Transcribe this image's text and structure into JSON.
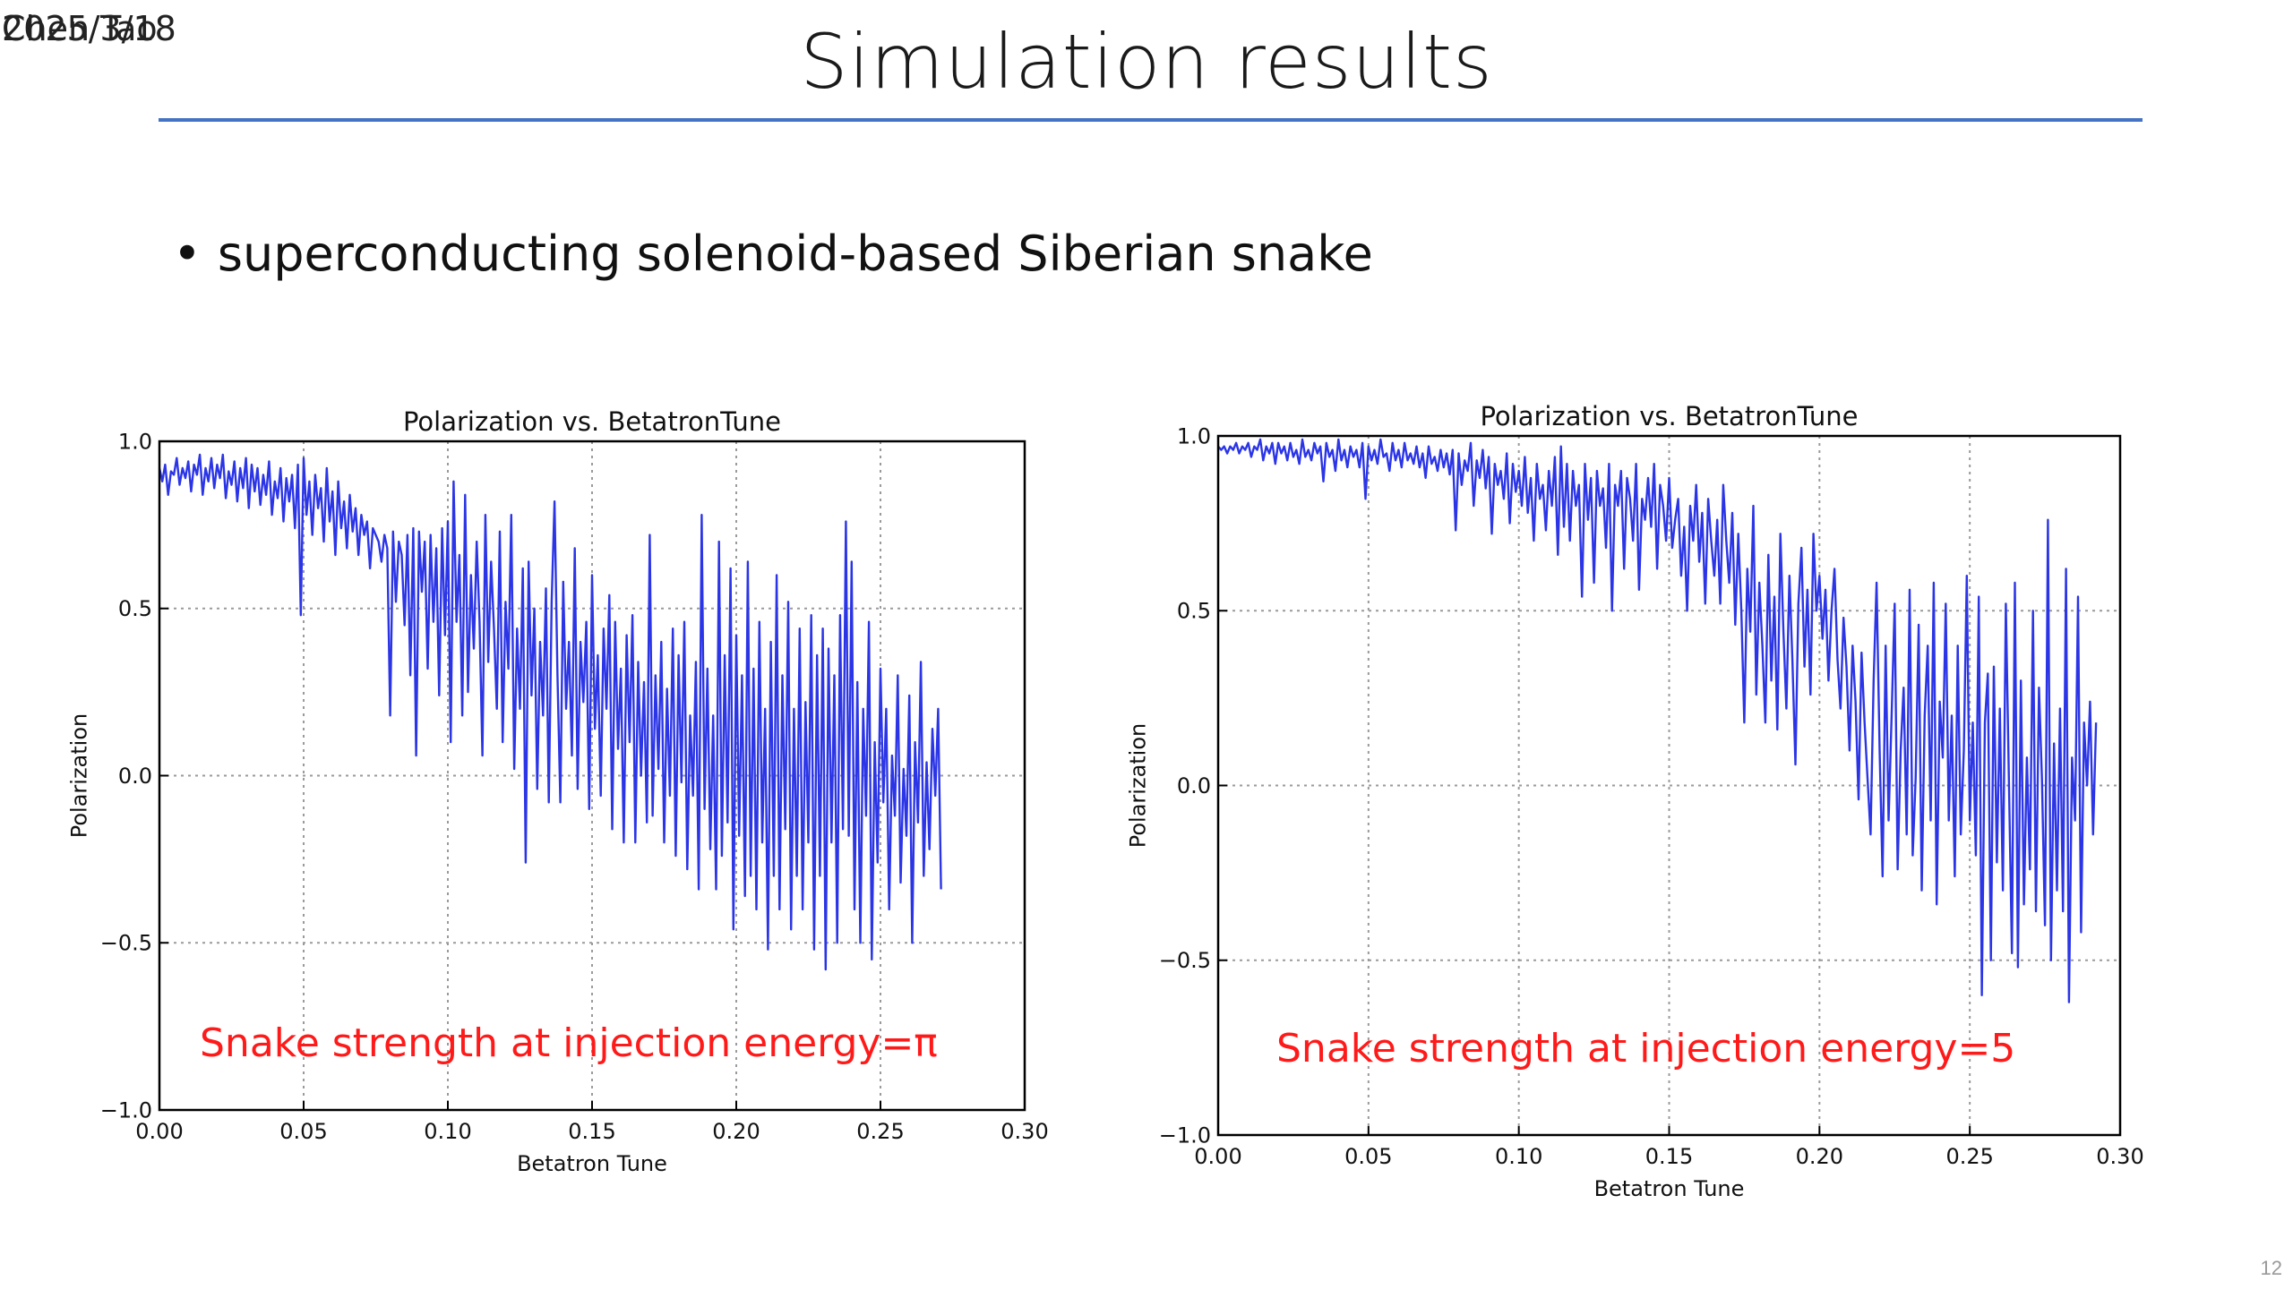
{
  "header": {
    "date_text": "2025/3/18",
    "author_text": "Chen Tao",
    "title": "Simulation results"
  },
  "bullet": {
    "text": "superconducting solenoid-based Siberian snake"
  },
  "footer": {
    "slide_number": "12"
  },
  "colors": {
    "accent_rule": "#4472c4",
    "series_line": "#2b35e6",
    "annotation": "#ff1a1a"
  },
  "chart_data": [
    {
      "type": "line",
      "title": "Polarization vs. BetatronTune",
      "xlabel": "Betatron Tune",
      "ylabel": "Polarization",
      "xlim": [
        0.0,
        0.3
      ],
      "ylim": [
        -1.0,
        1.0
      ],
      "x_ticks": [
        "0.00",
        "0.05",
        "0.10",
        "0.15",
        "0.20",
        "0.25",
        "0.30"
      ],
      "y_ticks": [
        "−1.0",
        "−0.5",
        "0.0",
        "0.5",
        "1.0"
      ],
      "grid": true,
      "annotation": "Snake strength at injection energy=π",
      "series": [
        {
          "x_start": 0.0,
          "x_step": 0.001,
          "values": [
            0.92,
            0.88,
            0.93,
            0.84,
            0.91,
            0.9,
            0.95,
            0.87,
            0.92,
            0.89,
            0.94,
            0.85,
            0.93,
            0.9,
            0.96,
            0.84,
            0.92,
            0.88,
            0.95,
            0.86,
            0.93,
            0.89,
            0.96,
            0.83,
            0.91,
            0.87,
            0.94,
            0.82,
            0.92,
            0.86,
            0.95,
            0.8,
            0.93,
            0.85,
            0.92,
            0.81,
            0.9,
            0.84,
            0.94,
            0.78,
            0.88,
            0.83,
            0.92,
            0.76,
            0.89,
            0.82,
            0.9,
            0.74,
            0.93,
            0.48,
            0.95,
            0.78,
            0.88,
            0.72,
            0.9,
            0.8,
            0.86,
            0.7,
            0.92,
            0.76,
            0.85,
            0.66,
            0.88,
            0.74,
            0.82,
            0.68,
            0.84,
            0.73,
            0.8,
            0.66,
            0.78,
            0.72,
            0.76,
            0.62,
            0.74,
            0.72,
            0.7,
            0.64,
            0.72,
            0.68,
            0.18,
            0.73,
            0.52,
            0.7,
            0.66,
            0.45,
            0.72,
            0.3,
            0.74,
            0.06,
            0.73,
            0.55,
            0.7,
            0.32,
            0.72,
            0.46,
            0.68,
            0.24,
            0.74,
            0.42,
            0.76,
            0.1,
            0.88,
            0.46,
            0.66,
            0.18,
            0.84,
            0.25,
            0.6,
            0.38,
            0.7,
            0.46,
            0.06,
            0.78,
            0.34,
            0.64,
            0.44,
            0.2,
            0.73,
            0.1,
            0.52,
            0.32,
            0.78,
            0.02,
            0.44,
            0.2,
            0.62,
            -0.26,
            0.64,
            0.24,
            0.5,
            -0.04,
            0.4,
            0.18,
            0.56,
            -0.08,
            0.52,
            0.82,
            0.3,
            -0.08,
            0.58,
            0.2,
            0.4,
            0.06,
            0.68,
            -0.04,
            0.4,
            0.22,
            0.46,
            -0.1,
            0.6,
            0.14,
            0.36,
            -0.06,
            0.44,
            0.2,
            0.54,
            -0.16,
            0.46,
            0.08,
            0.32,
            -0.2,
            0.42,
            0.1,
            0.48,
            -0.2,
            0.34,
            0.0,
            0.28,
            -0.14,
            0.72,
            -0.12,
            0.3,
            0.02,
            0.4,
            -0.2,
            0.26,
            -0.06,
            0.44,
            -0.24,
            0.36,
            -0.02,
            0.46,
            -0.28,
            0.18,
            -0.06,
            0.34,
            -0.34,
            0.78,
            -0.1,
            0.32,
            -0.22,
            0.18,
            -0.34,
            0.7,
            -0.24,
            0.36,
            -0.14,
            0.62,
            -0.46,
            0.42,
            -0.18,
            0.3,
            -0.36,
            0.64,
            -0.3,
            0.32,
            -0.4,
            0.46,
            -0.2,
            0.2,
            -0.52,
            0.4,
            -0.3,
            0.6,
            -0.4,
            0.3,
            -0.16,
            0.52,
            -0.46,
            0.2,
            -0.3,
            0.44,
            -0.4,
            0.22,
            -0.2,
            0.48,
            -0.52,
            0.36,
            -0.3,
            0.44,
            -0.58,
            0.38,
            -0.2,
            0.3,
            -0.5,
            0.48,
            -0.16,
            0.76,
            -0.18,
            0.64,
            -0.4,
            0.28,
            -0.5,
            0.2,
            -0.12,
            0.46,
            -0.55,
            0.1,
            -0.26,
            0.32,
            -0.08,
            0.2,
            -0.4,
            0.06,
            -0.12,
            0.3,
            -0.32,
            0.02,
            -0.18,
            0.24,
            -0.5,
            0.1,
            -0.14,
            0.34,
            -0.3,
            0.04,
            -0.22,
            0.14,
            -0.06,
            0.2,
            -0.34
          ]
        }
      ]
    },
    {
      "type": "line",
      "title": "Polarization vs. BetatronTune",
      "xlabel": "Betatron Tune",
      "ylabel": "Polarization",
      "xlim": [
        0.0,
        0.3
      ],
      "ylim": [
        -1.0,
        1.0
      ],
      "x_ticks": [
        "0.00",
        "0.05",
        "0.10",
        "0.15",
        "0.20",
        "0.25",
        "0.30"
      ],
      "y_ticks": [
        "−1.0",
        "−0.5",
        "0.0",
        "0.5",
        "1.0"
      ],
      "grid": true,
      "annotation": "Snake strength at injection energy=5",
      "series": [
        {
          "x_start": 0.0,
          "x_step": 0.001,
          "values": [
            0.97,
            0.96,
            0.97,
            0.95,
            0.97,
            0.96,
            0.98,
            0.95,
            0.97,
            0.96,
            0.98,
            0.94,
            0.97,
            0.96,
            0.99,
            0.93,
            0.97,
            0.95,
            0.98,
            0.92,
            0.98,
            0.95,
            0.97,
            0.93,
            0.98,
            0.94,
            0.96,
            0.92,
            0.99,
            0.94,
            0.96,
            0.93,
            0.98,
            0.95,
            0.97,
            0.87,
            0.98,
            0.94,
            0.96,
            0.9,
            0.99,
            0.93,
            0.96,
            0.91,
            0.97,
            0.94,
            0.96,
            0.91,
            0.98,
            0.82,
            0.97,
            0.93,
            0.96,
            0.92,
            0.99,
            0.94,
            0.95,
            0.9,
            0.98,
            0.93,
            0.96,
            0.91,
            0.98,
            0.93,
            0.95,
            0.92,
            0.97,
            0.91,
            0.95,
            0.88,
            0.97,
            0.92,
            0.94,
            0.9,
            0.96,
            0.91,
            0.95,
            0.89,
            0.96,
            0.73,
            0.95,
            0.86,
            0.93,
            0.9,
            0.98,
            0.8,
            0.93,
            0.88,
            0.96,
            0.85,
            0.94,
            0.72,
            0.92,
            0.86,
            0.9,
            0.82,
            0.95,
            0.75,
            0.92,
            0.84,
            0.9,
            0.8,
            0.94,
            0.78,
            0.88,
            0.7,
            0.92,
            0.82,
            0.86,
            0.73,
            0.9,
            0.8,
            0.94,
            0.66,
            0.97,
            0.74,
            0.92,
            0.7,
            0.9,
            0.8,
            0.86,
            0.54,
            0.92,
            0.76,
            0.88,
            0.58,
            0.9,
            0.8,
            0.85,
            0.68,
            0.92,
            0.5,
            0.86,
            0.8,
            0.9,
            0.62,
            0.88,
            0.82,
            0.7,
            0.92,
            0.56,
            0.82,
            0.76,
            0.88,
            0.74,
            0.92,
            0.62,
            0.86,
            0.8,
            0.7,
            0.88,
            0.68,
            0.76,
            0.82,
            0.6,
            0.74,
            0.5,
            0.8,
            0.7,
            0.86,
            0.64,
            0.78,
            0.52,
            0.82,
            0.7,
            0.6,
            0.76,
            0.52,
            0.86,
            0.7,
            0.58,
            0.78,
            0.46,
            0.72,
            0.5,
            0.18,
            0.62,
            0.44,
            0.8,
            0.26,
            0.58,
            0.4,
            0.18,
            0.66,
            0.3,
            0.54,
            0.16,
            0.72,
            0.44,
            0.22,
            0.6,
            0.36,
            0.06,
            0.52,
            0.68,
            0.34,
            0.56,
            0.26,
            0.72,
            0.5,
            0.6,
            0.42,
            0.56,
            0.3,
            0.5,
            0.62,
            0.36,
            0.22,
            0.48,
            0.34,
            0.1,
            0.4,
            0.24,
            -0.04,
            0.38,
            0.18,
            0.02,
            -0.14,
            0.3,
            0.58,
            0.1,
            -0.26,
            0.4,
            -0.1,
            0.2,
            0.52,
            -0.24,
            0.1,
            0.28,
            -0.14,
            0.56,
            -0.2,
            0.02,
            0.46,
            -0.3,
            0.2,
            0.4,
            -0.1,
            0.58,
            -0.34,
            0.24,
            0.08,
            0.52,
            -0.1,
            0.2,
            -0.26,
            0.4,
            -0.14,
            0.1,
            0.6,
            -0.1,
            0.18,
            -0.2,
            0.54,
            -0.6,
            0.18,
            0.32,
            -0.5,
            0.34,
            -0.22,
            0.22,
            -0.3,
            0.52,
            0.02,
            -0.48,
            0.58,
            -0.52,
            0.3,
            -0.34,
            0.08,
            -0.24,
            0.5,
            -0.36,
            0.28,
            0.02,
            -0.4,
            0.76,
            -0.5,
            0.12,
            -0.3,
            0.22,
            -0.36,
            0.62,
            -0.62,
            0.08,
            -0.1,
            0.54,
            -0.42,
            0.18,
            0.0,
            0.24,
            -0.14,
            0.18
          ]
        }
      ]
    }
  ]
}
